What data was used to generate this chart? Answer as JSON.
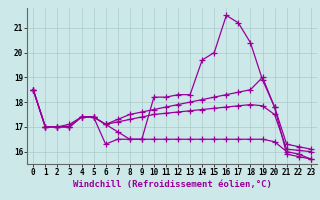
{
  "xlabel": "Windchill (Refroidissement éolien,°C)",
  "bg_color": "#cce8e8",
  "line_color": "#990099",
  "marker": "+",
  "markersize": 4,
  "linewidth": 0.9,
  "xlim": [
    -0.5,
    23.5
  ],
  "ylim": [
    15.5,
    21.8
  ],
  "yticks": [
    16,
    17,
    18,
    19,
    20,
    21
  ],
  "xticks": [
    0,
    1,
    2,
    3,
    4,
    5,
    6,
    7,
    8,
    9,
    10,
    11,
    12,
    13,
    14,
    15,
    16,
    17,
    18,
    19,
    20,
    21,
    22,
    23
  ],
  "series": [
    [
      18.5,
      17.0,
      17.0,
      17.0,
      17.4,
      17.4,
      17.1,
      16.8,
      16.5,
      16.5,
      18.2,
      18.2,
      18.3,
      18.3,
      19.7,
      20.0,
      21.5,
      21.2,
      20.4,
      18.9,
      17.8,
      15.9,
      15.8,
      15.7
    ],
    [
      18.5,
      17.0,
      17.0,
      17.0,
      17.4,
      17.4,
      17.1,
      17.3,
      17.5,
      17.6,
      17.7,
      17.8,
      17.9,
      18.0,
      18.1,
      18.2,
      18.3,
      18.4,
      18.5,
      19.0,
      17.8,
      16.3,
      16.2,
      16.1
    ],
    [
      18.5,
      17.0,
      17.0,
      17.1,
      17.4,
      17.4,
      17.1,
      17.2,
      17.3,
      17.4,
      17.5,
      17.55,
      17.6,
      17.65,
      17.7,
      17.75,
      17.8,
      17.85,
      17.9,
      17.85,
      17.5,
      16.1,
      16.05,
      16.0
    ],
    [
      18.5,
      17.0,
      17.0,
      17.0,
      17.4,
      17.4,
      16.3,
      16.5,
      16.5,
      16.5,
      16.5,
      16.5,
      16.5,
      16.5,
      16.5,
      16.5,
      16.5,
      16.5,
      16.5,
      16.5,
      16.4,
      16.0,
      15.9,
      15.7
    ]
  ],
  "grid_color": "#aacccc",
  "tick_fontsize": 5.5,
  "xlabel_fontsize": 6.5
}
